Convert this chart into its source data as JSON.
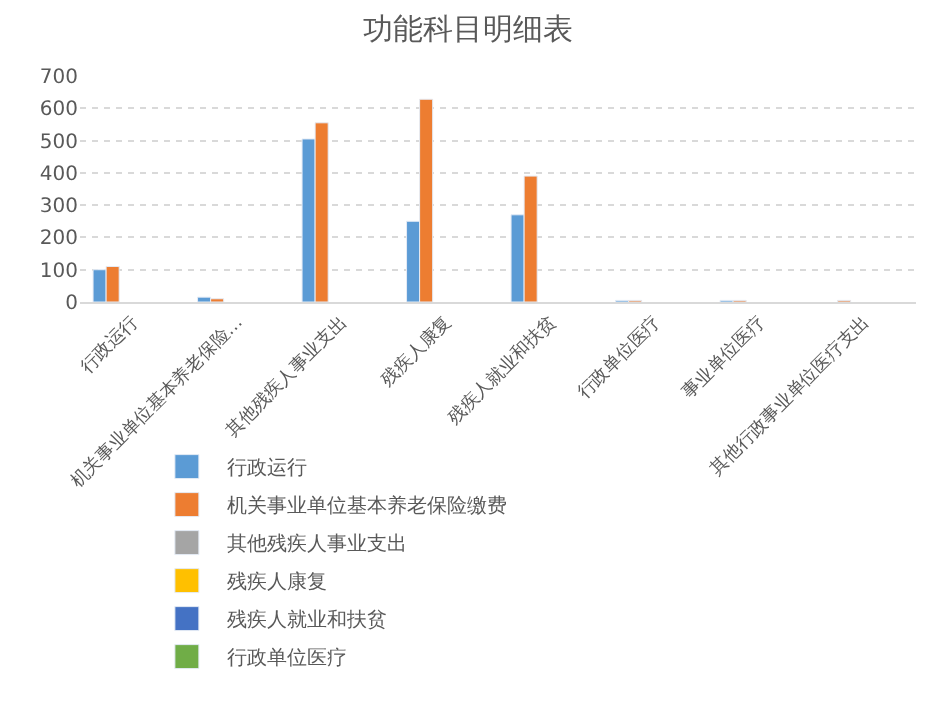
{
  "chart_data": {
    "type": "bar",
    "title": "功能科目明细表",
    "categories": [
      "行政运行",
      "机关事业单位基本养老保险…",
      "其他残疾人事业支出",
      "残疾人康复",
      "残疾人就业和扶贫",
      "行政单位医疗",
      "事业单位医疗",
      "其他行政事业单位医疗支出"
    ],
    "series": [
      {
        "name": "行政运行",
        "color": "#5b9bd5",
        "values": [
          100,
          15,
          505,
          250,
          270,
          5,
          5,
          null
        ]
      },
      {
        "name": "机关事业单位基本养老保险缴费",
        "color": "#ed7d31",
        "values": [
          110,
          10,
          555,
          628,
          390,
          5,
          5,
          5
        ]
      },
      {
        "name": "其他残疾人事业支出",
        "color": "#a5a5a5",
        "values": [
          null,
          null,
          null,
          null,
          null,
          null,
          null,
          null
        ]
      },
      {
        "name": "残疾人康复",
        "color": "#ffc000",
        "values": [
          null,
          null,
          null,
          null,
          null,
          null,
          null,
          null
        ]
      },
      {
        "name": "残疾人就业和扶贫",
        "color": "#4472c4",
        "values": [
          null,
          null,
          null,
          null,
          null,
          null,
          null,
          null
        ]
      },
      {
        "name": "行政单位医疗",
        "color": "#70ad47",
        "values": [
          null,
          null,
          null,
          null,
          null,
          null,
          null,
          null
        ]
      }
    ],
    "ylim": [
      0,
      700
    ],
    "yticks": [
      0,
      100,
      200,
      300,
      400,
      500,
      600,
      700
    ],
    "grid": "y",
    "legend": "bottom"
  }
}
